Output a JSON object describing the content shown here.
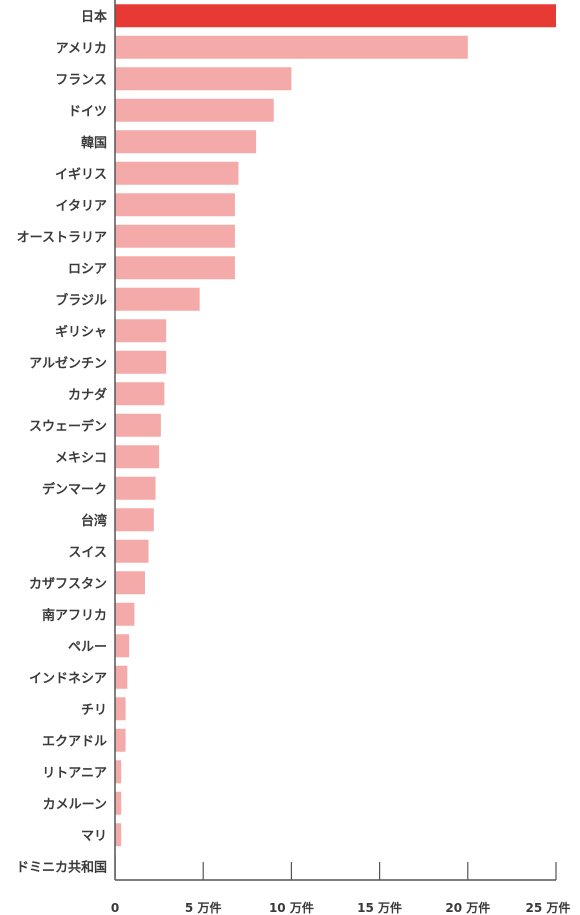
{
  "chart_data": {
    "type": "bar",
    "orientation": "horizontal",
    "title": "",
    "xlabel": "",
    "ylabel": "",
    "xlim": [
      0,
      25
    ],
    "grid": false,
    "highlight_color": "#e83a35",
    "bar_color": "#f5aaaa",
    "axis_color": "#555555",
    "categories": [
      "日本",
      "アメリカ",
      "フランス",
      "ドイツ",
      "韓国",
      "イギリス",
      "イタリア",
      "オーストラリア",
      "ロシア",
      "ブラジル",
      "ギリシャ",
      "アルゼンチン",
      "カナダ",
      "スウェーデン",
      "メキシコ",
      "デンマーク",
      "台湾",
      "スイス",
      "カザフスタン",
      "南アフリカ",
      "ペルー",
      "インドネシア",
      "チリ",
      "エクアドル",
      "リトアニア",
      "カメルーン",
      "マリ",
      "ドミニカ共和国"
    ],
    "values": [
      25,
      20,
      10,
      9,
      8,
      7,
      6.8,
      6.8,
      6.8,
      4.8,
      2.9,
      2.9,
      2.8,
      2.6,
      2.5,
      2.3,
      2.2,
      1.9,
      1.7,
      1.1,
      0.8,
      0.7,
      0.6,
      0.6,
      0.35,
      0.35,
      0.35,
      0.05
    ],
    "highlight_index": 0,
    "x_ticks": [
      0,
      5,
      10,
      15,
      20,
      25
    ],
    "x_tick_labels": [
      "0",
      "5 万件",
      "10 万件",
      "15 万件",
      "20 万件",
      "25 万件"
    ]
  }
}
